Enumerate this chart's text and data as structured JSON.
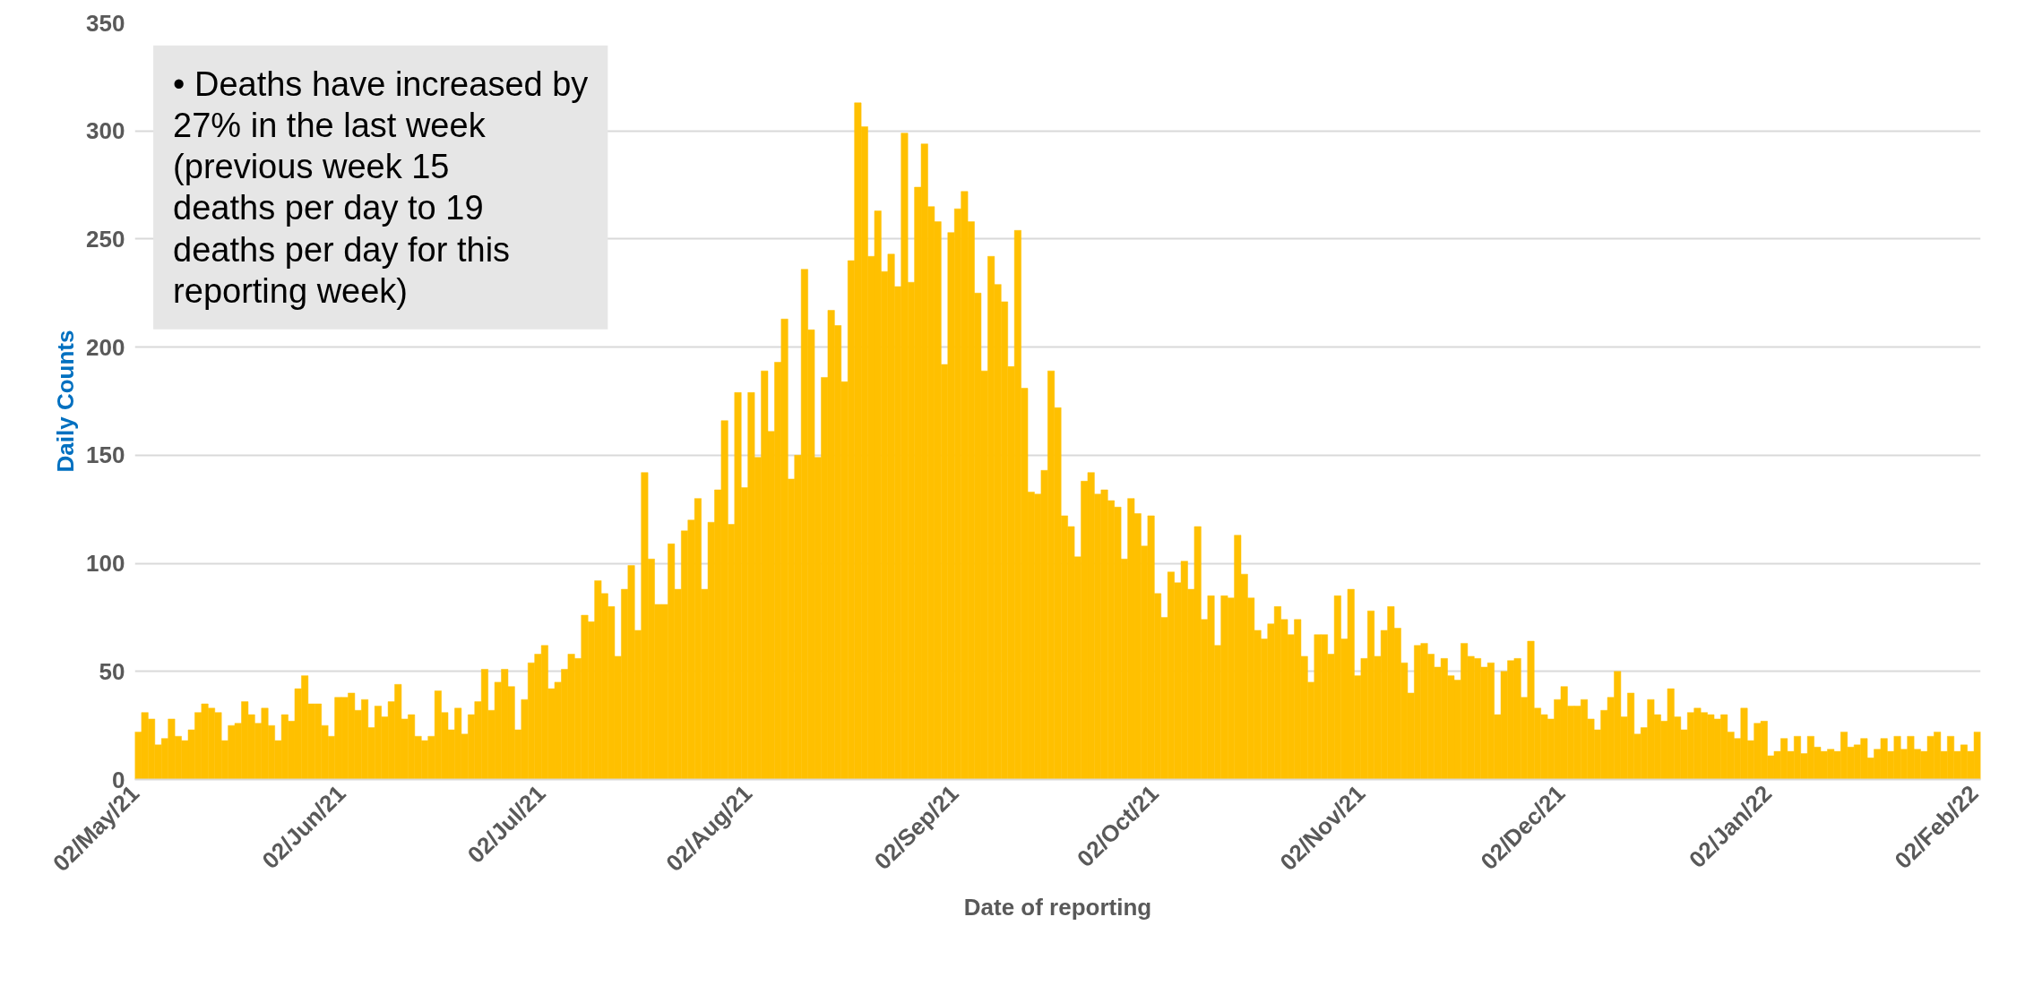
{
  "chart_data": {
    "type": "bar",
    "xlabel": "Date of reporting",
    "ylabel": "Daily Counts",
    "annotations": [
      "• Deaths have increased by 27% in the last week (previous week 15 deaths per day to 19 deaths per day for this reporting week)"
    ],
    "x": [
      "2021-05-02",
      "2021-05-03",
      "2021-05-04",
      "2021-05-05",
      "2021-05-06",
      "2021-05-07",
      "2021-05-08",
      "2021-05-09",
      "2021-05-10",
      "2021-05-11",
      "2021-05-12",
      "2021-05-13",
      "2021-05-14",
      "2021-05-15",
      "2021-05-16",
      "2021-05-17",
      "2021-05-18",
      "2021-05-19",
      "2021-05-20",
      "2021-05-21",
      "2021-05-22",
      "2021-05-23",
      "2021-05-24",
      "2021-05-25",
      "2021-05-26",
      "2021-05-27",
      "2021-05-28",
      "2021-05-29",
      "2021-05-30",
      "2021-05-31",
      "2021-06-01",
      "2021-06-02",
      "2021-06-03",
      "2021-06-04",
      "2021-06-05",
      "2021-06-06",
      "2021-06-07",
      "2021-06-08",
      "2021-06-09",
      "2021-06-10",
      "2021-06-11",
      "2021-06-12",
      "2021-06-13",
      "2021-06-14",
      "2021-06-15",
      "2021-06-16",
      "2021-06-17",
      "2021-06-18",
      "2021-06-19",
      "2021-06-20",
      "2021-06-21",
      "2021-06-22",
      "2021-06-23",
      "2021-06-24",
      "2021-06-25",
      "2021-06-26",
      "2021-06-27",
      "2021-06-28",
      "2021-06-29",
      "2021-06-30",
      "2021-07-01",
      "2021-07-02",
      "2021-07-03",
      "2021-07-04",
      "2021-07-05",
      "2021-07-06",
      "2021-07-07",
      "2021-07-08",
      "2021-07-09",
      "2021-07-10",
      "2021-07-11",
      "2021-07-12",
      "2021-07-13",
      "2021-07-14",
      "2021-07-15",
      "2021-07-16",
      "2021-07-17",
      "2021-07-18",
      "2021-07-19",
      "2021-07-20",
      "2021-07-21",
      "2021-07-22",
      "2021-07-23",
      "2021-07-24",
      "2021-07-25",
      "2021-07-26",
      "2021-07-27",
      "2021-07-28",
      "2021-07-29",
      "2021-07-30",
      "2021-07-31",
      "2021-08-01",
      "2021-08-02",
      "2021-08-03",
      "2021-08-04",
      "2021-08-05",
      "2021-08-06",
      "2021-08-07",
      "2021-08-08",
      "2021-08-09",
      "2021-08-10",
      "2021-08-11",
      "2021-08-12",
      "2021-08-13",
      "2021-08-14",
      "2021-08-15",
      "2021-08-16",
      "2021-08-17",
      "2021-08-18",
      "2021-08-19",
      "2021-08-20",
      "2021-08-21",
      "2021-08-22",
      "2021-08-23",
      "2021-08-24",
      "2021-08-25",
      "2021-08-26",
      "2021-08-27",
      "2021-08-28",
      "2021-08-29",
      "2021-08-30",
      "2021-08-31",
      "2021-09-01",
      "2021-09-02",
      "2021-09-03",
      "2021-09-04",
      "2021-09-05",
      "2021-09-06",
      "2021-09-07",
      "2021-09-08",
      "2021-09-09",
      "2021-09-10",
      "2021-09-11",
      "2021-09-12",
      "2021-09-13",
      "2021-09-14",
      "2021-09-15",
      "2021-09-16",
      "2021-09-17",
      "2021-09-18",
      "2021-09-19",
      "2021-09-20",
      "2021-09-21",
      "2021-09-22",
      "2021-09-23",
      "2021-09-24",
      "2021-09-25",
      "2021-09-26",
      "2021-09-27",
      "2021-09-28",
      "2021-09-29",
      "2021-09-30",
      "2021-10-01",
      "2021-10-02",
      "2021-10-03",
      "2021-10-04",
      "2021-10-05",
      "2021-10-06",
      "2021-10-07",
      "2021-10-08",
      "2021-10-09",
      "2021-10-10",
      "2021-10-11",
      "2021-10-12",
      "2021-10-13",
      "2021-10-14",
      "2021-10-15",
      "2021-10-16",
      "2021-10-17",
      "2021-10-18",
      "2021-10-19",
      "2021-10-20",
      "2021-10-21",
      "2021-10-22",
      "2021-10-23",
      "2021-10-24",
      "2021-10-25",
      "2021-10-26",
      "2021-10-27",
      "2021-10-28",
      "2021-10-29",
      "2021-10-30",
      "2021-10-31",
      "2021-11-01",
      "2021-11-02",
      "2021-11-03",
      "2021-11-04",
      "2021-11-05",
      "2021-11-06",
      "2021-11-07",
      "2021-11-08",
      "2021-11-09",
      "2021-11-10",
      "2021-11-11",
      "2021-11-12",
      "2021-11-13",
      "2021-11-14",
      "2021-11-15",
      "2021-11-16",
      "2021-11-17",
      "2021-11-18",
      "2021-11-19",
      "2021-11-20",
      "2021-11-21",
      "2021-11-22",
      "2021-11-23",
      "2021-11-24",
      "2021-11-25",
      "2021-11-26",
      "2021-11-27",
      "2021-11-28",
      "2021-11-29",
      "2021-11-30",
      "2021-12-01",
      "2021-12-02",
      "2021-12-03",
      "2021-12-04",
      "2021-12-05",
      "2021-12-06",
      "2021-12-07",
      "2021-12-08",
      "2021-12-09",
      "2021-12-10",
      "2021-12-11",
      "2021-12-12",
      "2021-12-13",
      "2021-12-14",
      "2021-12-15",
      "2021-12-16",
      "2021-12-17",
      "2021-12-18",
      "2021-12-19",
      "2021-12-20",
      "2021-12-21",
      "2021-12-22",
      "2021-12-23",
      "2021-12-24",
      "2021-12-25",
      "2021-12-26",
      "2021-12-27",
      "2021-12-28",
      "2021-12-29",
      "2021-12-30",
      "2021-12-31",
      "2022-01-01",
      "2022-01-02",
      "2022-01-03",
      "2022-01-04",
      "2022-01-05",
      "2022-01-06",
      "2022-01-07",
      "2022-01-08",
      "2022-01-09",
      "2022-01-10",
      "2022-01-11",
      "2022-01-12",
      "2022-01-13",
      "2022-01-14",
      "2022-01-15",
      "2022-01-16",
      "2022-01-17",
      "2022-01-18",
      "2022-01-19",
      "2022-01-20",
      "2022-01-21",
      "2022-01-22",
      "2022-01-23",
      "2022-01-24",
      "2022-01-25",
      "2022-01-26",
      "2022-01-27",
      "2022-01-28",
      "2022-01-29",
      "2022-01-30",
      "2022-01-31",
      "2022-02-01",
      "2022-02-02"
    ],
    "series": [
      {
        "color": "#ffc000",
        "values": [
          22,
          31,
          28,
          16,
          19,
          28,
          20,
          18,
          23,
          31,
          35,
          33,
          31,
          18,
          25,
          26,
          36,
          30,
          26,
          33,
          25,
          18,
          30,
          27,
          42,
          48,
          35,
          35,
          25,
          20,
          38,
          38,
          40,
          32,
          37,
          24,
          34,
          29,
          36,
          44,
          28,
          30,
          20,
          18,
          20,
          41,
          31,
          23,
          33,
          21,
          30,
          36,
          51,
          32,
          45,
          51,
          43,
          23,
          37,
          54,
          58,
          62,
          42,
          45,
          51,
          58,
          56,
          76,
          73,
          92,
          86,
          80,
          57,
          88,
          99,
          69,
          142,
          102,
          81,
          81,
          109,
          88,
          115,
          120,
          130,
          88,
          119,
          134,
          166,
          118,
          179,
          135,
          179,
          149,
          189,
          161,
          193,
          213,
          139,
          150,
          236,
          208,
          149,
          186,
          217,
          210,
          184,
          240,
          313,
          302,
          242,
          263,
          235,
          243,
          228,
          299,
          230,
          274,
          294,
          265,
          258,
          192,
          253,
          264,
          272,
          258,
          225,
          189,
          242,
          229,
          221,
          191,
          254,
          181,
          133,
          132,
          143,
          189,
          172,
          122,
          117,
          103,
          138,
          142,
          132,
          134,
          129,
          126,
          102,
          130,
          123,
          108,
          122,
          86,
          75,
          96,
          91,
          101,
          88,
          117,
          74,
          85,
          62,
          85,
          84,
          113,
          95,
          84,
          69,
          65,
          72,
          80,
          74,
          67,
          74,
          57,
          45,
          67,
          67,
          58,
          85,
          65,
          88,
          48,
          56,
          78,
          57,
          69,
          80,
          70,
          54,
          40,
          62,
          63,
          58,
          52,
          56,
          48,
          46,
          63,
          57,
          56,
          52,
          54,
          30,
          50,
          55,
          56,
          38,
          64,
          33,
          30,
          28,
          37,
          43,
          34,
          34,
          37,
          28,
          23,
          32,
          38,
          50,
          29,
          40,
          21,
          24,
          37,
          30,
          27,
          42,
          29,
          23,
          31,
          33,
          31,
          30,
          28,
          30,
          22,
          19,
          33,
          18,
          26,
          27,
          11,
          13,
          19,
          13,
          20,
          12,
          20,
          15,
          13,
          14,
          13,
          22,
          15,
          16,
          19,
          10,
          14,
          19,
          13,
          20,
          14,
          20,
          14,
          13,
          20,
          22,
          13,
          20,
          13,
          16,
          13,
          22
        ]
      }
    ],
    "xlim": [
      "2021-05-02",
      "2022-02-03"
    ],
    "xticks": [
      {
        "value": "2021-05-02",
        "label": "02/May/21"
      },
      {
        "value": "2021-06-02",
        "label": "02/Jun/21"
      },
      {
        "value": "2021-07-02",
        "label": "02/Jul/21"
      },
      {
        "value": "2021-08-02",
        "label": "02/Aug/21"
      },
      {
        "value": "2021-09-02",
        "label": "02/Sep/21"
      },
      {
        "value": "2021-10-02",
        "label": "02/Oct/21"
      },
      {
        "value": "2021-11-02",
        "label": "02/Nov/21"
      },
      {
        "value": "2021-12-02",
        "label": "02/Dec/21"
      },
      {
        "value": "2022-01-02",
        "label": "02/Jan/22"
      },
      {
        "value": "2022-02-02",
        "label": "02/Feb/22"
      }
    ],
    "ylim": [
      0,
      350
    ],
    "yticks": [
      0,
      50,
      100,
      150,
      200,
      250,
      300,
      350
    ],
    "grid": "y"
  }
}
